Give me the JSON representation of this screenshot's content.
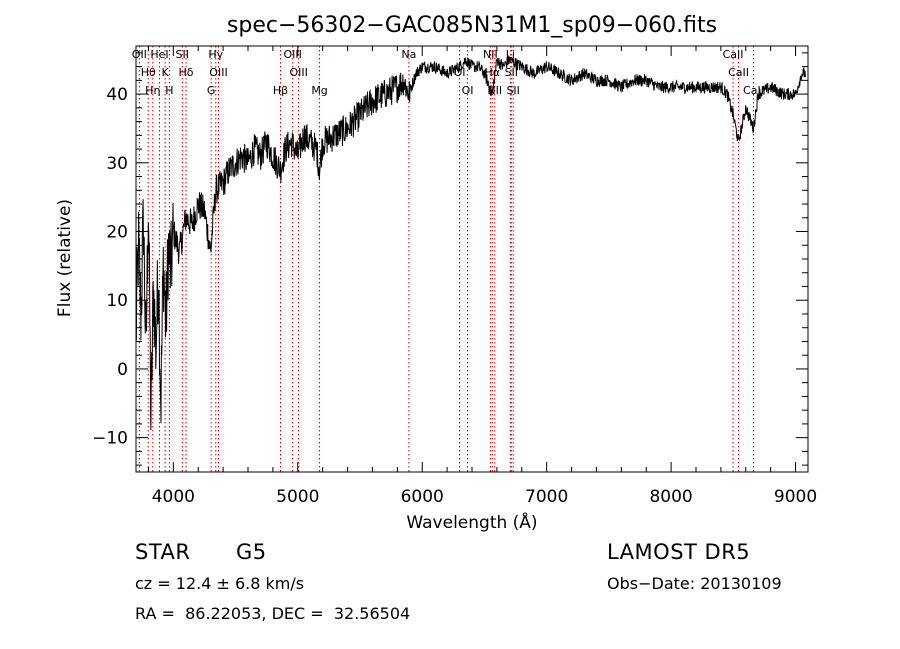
{
  "chart_data": {
    "type": "line",
    "title": "spec−56302−GAC085N31M1_sp09−060.fits",
    "xlabel": "Wavelength (Å)",
    "ylabel": "Flux (relative)",
    "xlim": [
      3700,
      9100
    ],
    "ylim": [
      -15,
      47
    ],
    "x_ticks": [
      4000,
      5000,
      6000,
      7000,
      8000,
      9000
    ],
    "y_ticks": [
      -10,
      0,
      10,
      20,
      30,
      40
    ],
    "grid": false,
    "line_color": "#000000",
    "marker_color": "#cc0000",
    "series": [
      {
        "values": [
          [
            3700,
            5
          ],
          [
            3720,
            18
          ],
          [
            3740,
            8
          ],
          [
            3760,
            22
          ],
          [
            3780,
            2
          ],
          [
            3800,
            25
          ],
          [
            3820,
            -8
          ],
          [
            3840,
            12
          ],
          [
            3860,
            3
          ],
          [
            3880,
            15
          ],
          [
            3900,
            -5
          ],
          [
            3920,
            16
          ],
          [
            3940,
            6
          ],
          [
            3960,
            18
          ],
          [
            3980,
            14
          ],
          [
            4000,
            20
          ],
          [
            4050,
            17
          ],
          [
            4100,
            22
          ],
          [
            4150,
            21
          ],
          [
            4200,
            24
          ],
          [
            4250,
            23
          ],
          [
            4300,
            17
          ],
          [
            4340,
            26
          ],
          [
            4400,
            27
          ],
          [
            4450,
            29
          ],
          [
            4500,
            30
          ],
          [
            4550,
            31
          ],
          [
            4600,
            30
          ],
          [
            4650,
            32
          ],
          [
            4700,
            31
          ],
          [
            4750,
            33
          ],
          [
            4800,
            31
          ],
          [
            4861,
            29
          ],
          [
            4900,
            32
          ],
          [
            4950,
            33
          ],
          [
            5000,
            31
          ],
          [
            5050,
            34
          ],
          [
            5100,
            33
          ],
          [
            5150,
            32
          ],
          [
            5175,
            29
          ],
          [
            5200,
            33
          ],
          [
            5300,
            34
          ],
          [
            5400,
            35
          ],
          [
            5500,
            37
          ],
          [
            5600,
            39
          ],
          [
            5700,
            40
          ],
          [
            5800,
            41
          ],
          [
            5850,
            42
          ],
          [
            5893,
            40
          ],
          [
            5950,
            43
          ],
          [
            6000,
            44
          ],
          [
            6100,
            44
          ],
          [
            6200,
            43
          ],
          [
            6300,
            44
          ],
          [
            6350,
            45
          ],
          [
            6400,
            44
          ],
          [
            6450,
            44
          ],
          [
            6500,
            43
          ],
          [
            6563,
            40
          ],
          [
            6600,
            45
          ],
          [
            6650,
            44
          ],
          [
            6700,
            45
          ],
          [
            6800,
            44
          ],
          [
            6900,
            43
          ],
          [
            7000,
            44
          ],
          [
            7100,
            43
          ],
          [
            7200,
            42
          ],
          [
            7300,
            43
          ],
          [
            7400,
            42
          ],
          [
            7500,
            42
          ],
          [
            7600,
            41
          ],
          [
            7700,
            42
          ],
          [
            7800,
            42
          ],
          [
            7900,
            41
          ],
          [
            8000,
            41
          ],
          [
            8100,
            41
          ],
          [
            8200,
            41
          ],
          [
            8300,
            41
          ],
          [
            8400,
            41
          ],
          [
            8450,
            40
          ],
          [
            8498,
            37
          ],
          [
            8542,
            33
          ],
          [
            8600,
            38
          ],
          [
            8662,
            35
          ],
          [
            8700,
            40
          ],
          [
            8800,
            41
          ],
          [
            8900,
            40
          ],
          [
            9000,
            40
          ],
          [
            9050,
            43
          ]
        ]
      }
    ],
    "lines": [
      {
        "wave": 3727,
        "labels": [
          "OII"
        ]
      },
      {
        "wave": 3798,
        "labels": [
          "Hθ"
        ]
      },
      {
        "wave": 3835,
        "labels": [
          "Hη"
        ]
      },
      {
        "wave": 3889,
        "labels": [
          "HeI"
        ]
      },
      {
        "wave": 3934,
        "labels": [
          "K"
        ]
      },
      {
        "wave": 3968,
        "labels": [
          "H"
        ]
      },
      {
        "wave": 4072,
        "labels": [
          "SII"
        ]
      },
      {
        "wave": 4102,
        "labels": [
          "Hδ"
        ]
      },
      {
        "wave": 4304,
        "labels": [
          "G"
        ]
      },
      {
        "wave": 4341,
        "labels": [
          "Hγ"
        ]
      },
      {
        "wave": 4363,
        "labels": [
          "OIII"
        ]
      },
      {
        "wave": 4861,
        "labels": [
          "Hβ"
        ]
      },
      {
        "wave": 4959,
        "labels": [
          "OIII"
        ]
      },
      {
        "wave": 5007,
        "labels": [
          "OIII"
        ]
      },
      {
        "wave": 5175,
        "labels": [
          "Mg"
        ]
      },
      {
        "wave": 5893,
        "labels": [
          "Na"
        ]
      },
      {
        "wave": 6300,
        "labels": [
          "OI"
        ]
      },
      {
        "wave": 6364,
        "labels": [
          "OI"
        ]
      },
      {
        "wave": 6548,
        "labels": [
          "NII"
        ]
      },
      {
        "wave": 6563,
        "labels": [
          "Hα"
        ]
      },
      {
        "wave": 6583,
        "labels": [
          "NII"
        ]
      },
      {
        "wave": 6708,
        "labels": [
          "Li"
        ]
      },
      {
        "wave": 6716,
        "labels": [
          "SII"
        ]
      },
      {
        "wave": 6731,
        "labels": [
          "SII"
        ]
      },
      {
        "wave": 8498,
        "labels": [
          "CaII"
        ]
      },
      {
        "wave": 8542,
        "labels": [
          "CaII"
        ]
      },
      {
        "wave": 8662,
        "labels": [
          "CaII"
        ]
      }
    ]
  },
  "info": {
    "object_type": "STAR",
    "subclass": "G5",
    "survey": "LAMOST DR5",
    "redshift": "cz = 12.4 ± 6.8 km/s",
    "obs_date": "Obs−Date: 20130109",
    "coords": "RA =  86.22053, DEC =  32.56504"
  }
}
